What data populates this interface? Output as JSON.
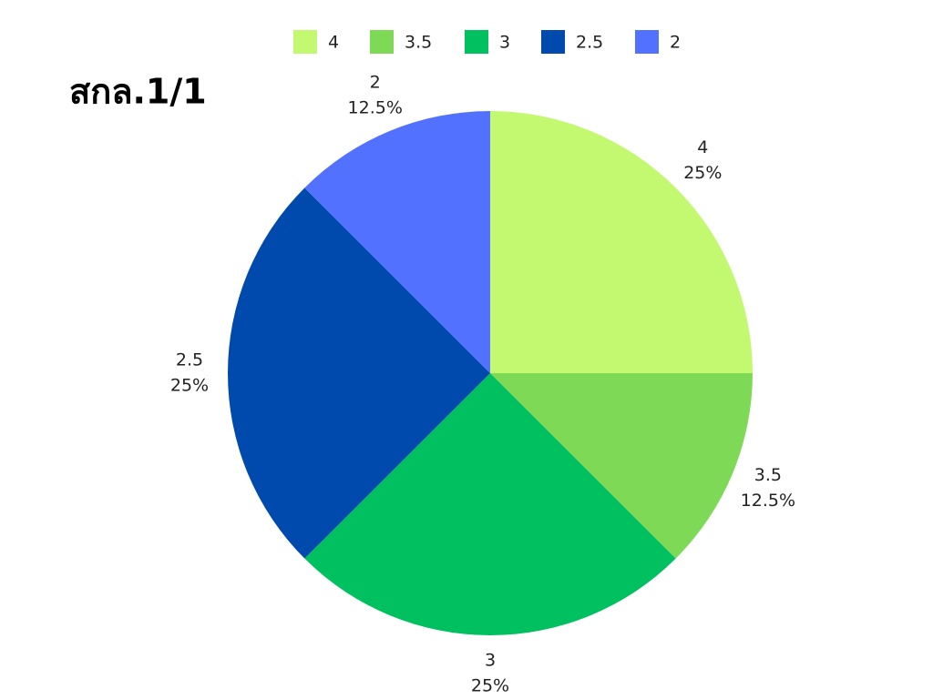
{
  "chart_data": {
    "type": "pie",
    "title": "สกล.1/1",
    "categories": [
      "4",
      "3.5",
      "3",
      "2.5",
      "2"
    ],
    "values": [
      25,
      12.5,
      25,
      25,
      12.5
    ],
    "value_labels": [
      "25%",
      "12.5%",
      "25%",
      "25%",
      "12.5%"
    ],
    "colors": [
      "#c2f970",
      "#7ed957",
      "#00c060",
      "#004aad",
      "#5271ff"
    ],
    "legend": "top"
  }
}
